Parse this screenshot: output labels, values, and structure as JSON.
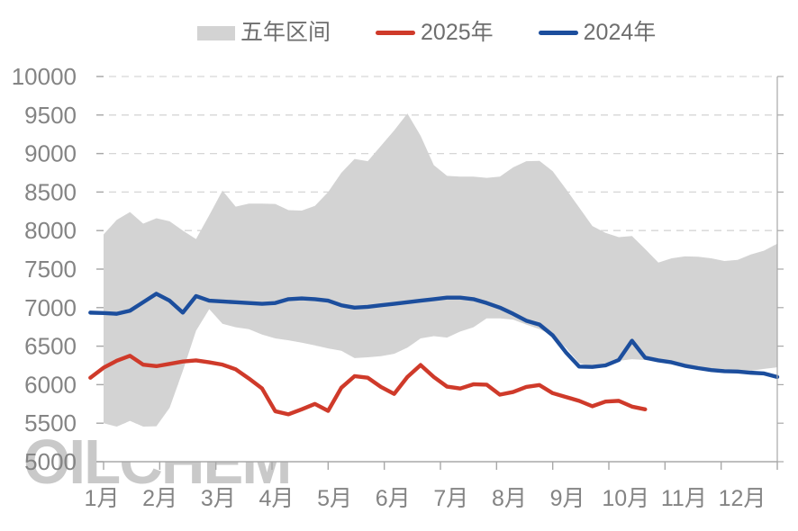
{
  "legend": {
    "range_label": "五年区间",
    "s2025_label": "2025年",
    "s2024_label": "2024年"
  },
  "watermark_text": "OILCHEM",
  "colors": {
    "band": "#d3d3d3",
    "red": "#cf3a2a",
    "blue": "#1c4e9d",
    "axis": "#a8a8a8",
    "grid": "#d6d6d6",
    "tick_label": "#848484",
    "legend_text": "#6e6e6e",
    "watermark": "#c9c9c9",
    "plot_bg": "#ffffff"
  },
  "chart_data": {
    "type": "area",
    "title": "",
    "xlabel": "",
    "ylabel": "",
    "ylim": [
      5000,
      10000
    ],
    "grid": "dashed-horizontal",
    "legend_position": "top-center",
    "y_ticks": [
      10000,
      9500,
      9000,
      8500,
      8000,
      7500,
      7000,
      6500,
      6000,
      5500,
      5000
    ],
    "x_categories": [
      "1月",
      "2月",
      "3月",
      "4月",
      "5月",
      "6月",
      "7月",
      "8月",
      "9月",
      "10月",
      "11月",
      "12月"
    ],
    "x_unit": "week-of-year",
    "series": [
      {
        "name": "五年区间",
        "type": "band",
        "color": "#d3d3d3",
        "upper": [
          7950,
          8140,
          8240,
          8090,
          8160,
          8120,
          8000,
          7890,
          8200,
          8520,
          8310,
          8350,
          8350,
          8345,
          8265,
          8260,
          8320,
          8500,
          8750,
          8930,
          8900,
          9100,
          9300,
          9520,
          9230,
          8850,
          8710,
          8700,
          8700,
          8685,
          8700,
          8820,
          8900,
          8905,
          8770,
          8540,
          8300,
          8060,
          7970,
          7915,
          7930,
          7760,
          7585,
          7640,
          7665,
          7660,
          7640,
          7605,
          7620,
          7690,
          7740,
          7830
        ],
        "lower": [
          5500,
          5455,
          5530,
          5455,
          5460,
          5700,
          6180,
          6700,
          6980,
          6790,
          6745,
          6720,
          6650,
          6600,
          6575,
          6545,
          6510,
          6470,
          6440,
          6345,
          6355,
          6370,
          6400,
          6480,
          6600,
          6630,
          6610,
          6690,
          6745,
          6860,
          6860,
          6845,
          6780,
          6720,
          6640,
          6480,
          6280,
          6230,
          6260,
          6310,
          6330,
          6320,
          6300,
          6280,
          6250,
          6225,
          6205,
          6195,
          6185,
          6180,
          6205,
          6225
        ]
      },
      {
        "name": "2025年",
        "type": "line",
        "color": "#cf3a2a",
        "values": [
          6090,
          6220,
          6310,
          6375,
          6260,
          6240,
          6270,
          6300,
          6315,
          6290,
          6260,
          6200,
          6080,
          5950,
          5655,
          5615,
          5680,
          5750,
          5660,
          5960,
          6110,
          6090,
          5970,
          5880,
          6100,
          6255,
          6100,
          5975,
          5950,
          6005,
          6000,
          5870,
          5905,
          5970,
          5995,
          5890,
          5840,
          5790,
          5720,
          5780,
          5790,
          5715,
          5680
        ]
      },
      {
        "name": "2024年",
        "type": "line",
        "color": "#1c4e9d",
        "values": [
          6935,
          6930,
          6920,
          6960,
          7070,
          7180,
          7090,
          6935,
          7150,
          7090,
          7080,
          7070,
          7060,
          7050,
          7060,
          7110,
          7120,
          7110,
          7090,
          7030,
          7000,
          7010,
          7030,
          7050,
          7070,
          7090,
          7110,
          7130,
          7130,
          7110,
          7060,
          7000,
          6920,
          6830,
          6780,
          6640,
          6420,
          6235,
          6230,
          6250,
          6320,
          6570,
          6350,
          6315,
          6290,
          6245,
          6215,
          6190,
          6175,
          6170,
          6155,
          6145,
          6100
        ]
      }
    ]
  }
}
